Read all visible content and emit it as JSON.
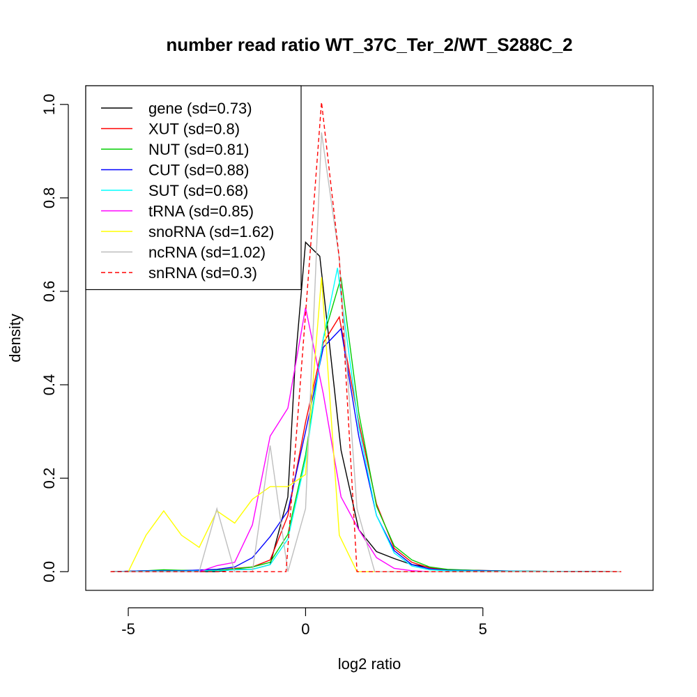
{
  "chart_data": {
    "type": "line",
    "title": "number read ratio WT_37C_Ter_2/WT_S288C_2",
    "xlabel": "log2 ratio",
    "ylabel": "density",
    "xlim": [
      -6.2,
      9.8
    ],
    "ylim": [
      -0.04,
      1.04
    ],
    "xticks": [
      -5,
      0,
      5
    ],
    "xtick_labels": [
      "-5",
      "0",
      "5"
    ],
    "yticks": [
      0.0,
      0.2,
      0.4,
      0.6,
      0.8,
      1.0
    ],
    "ytick_labels": [
      "0.0",
      "0.2",
      "0.4",
      "0.6",
      "0.8",
      "1.0"
    ],
    "grid": false,
    "legend_position": "top-left",
    "series": [
      {
        "name": "gene (sd=0.73)",
        "color": "#000000",
        "dash": "solid",
        "x": [
          -5.5,
          -4.5,
          -3.5,
          -3,
          -2.5,
          -2,
          -1.5,
          -1,
          -0.5,
          -0.3,
          0,
          0.4,
          0.8,
          1,
          1.5,
          2,
          2.5,
          3,
          4,
          6,
          8.9
        ],
        "y": [
          0,
          0,
          0,
          0,
          0,
          0.005,
          0.005,
          0.015,
          0.16,
          0.44,
          0.705,
          0.675,
          0.4,
          0.26,
          0.09,
          0.043,
          0.028,
          0.015,
          0.004,
          0.001,
          0
        ]
      },
      {
        "name": "XUT (sd=0.8)",
        "color": "#ff0000",
        "dash": "solid",
        "x": [
          -5.5,
          -4.5,
          -3.5,
          -2.5,
          -2,
          -1.5,
          -1,
          -0.5,
          0,
          0.5,
          0.95,
          1.5,
          2,
          2.5,
          3,
          3.5,
          4,
          5,
          6,
          8.9
        ],
        "y": [
          0,
          0.002,
          0.002,
          0.003,
          0.007,
          0.01,
          0.025,
          0.12,
          0.32,
          0.49,
          0.545,
          0.32,
          0.145,
          0.05,
          0.02,
          0.008,
          0.004,
          0.002,
          0.001,
          0
        ]
      },
      {
        "name": "NUT (sd=0.81)",
        "color": "#00cd00",
        "dash": "solid",
        "x": [
          -5.5,
          -4.5,
          -4,
          -3.5,
          -2.5,
          -2,
          -1.5,
          -1,
          -0.5,
          0,
          0.5,
          1,
          1.5,
          2,
          2.5,
          3,
          3.5,
          4,
          5,
          6,
          8.9
        ],
        "y": [
          0,
          0.002,
          0.004,
          0.003,
          0.003,
          0.006,
          0.01,
          0.02,
          0.08,
          0.25,
          0.5,
          0.63,
          0.34,
          0.14,
          0.055,
          0.025,
          0.01,
          0.005,
          0.002,
          0.001,
          0
        ]
      },
      {
        "name": "CUT (sd=0.88)",
        "color": "#0000ff",
        "dash": "solid",
        "x": [
          -5.5,
          -4.5,
          -3.5,
          -2.5,
          -2,
          -1.5,
          -1,
          -0.5,
          0,
          0.5,
          1,
          1.5,
          2,
          2.5,
          3,
          3.5,
          4,
          5,
          6,
          8.9
        ],
        "y": [
          0,
          0.002,
          0.002,
          0.005,
          0.01,
          0.03,
          0.075,
          0.13,
          0.3,
          0.48,
          0.52,
          0.29,
          0.12,
          0.045,
          0.015,
          0.006,
          0.003,
          0.002,
          0.001,
          0
        ]
      },
      {
        "name": "SUT (sd=0.68)",
        "color": "#00ffff",
        "dash": "solid",
        "x": [
          -5.5,
          -4.5,
          -3.5,
          -2.5,
          -2,
          -1.5,
          -1,
          -0.5,
          0,
          0.5,
          0.9,
          1.5,
          2,
          2.5,
          3,
          3.5,
          4,
          5,
          6,
          8.9
        ],
        "y": [
          0,
          0.001,
          0.001,
          0.002,
          0.004,
          0.005,
          0.015,
          0.07,
          0.24,
          0.5,
          0.65,
          0.31,
          0.12,
          0.04,
          0.012,
          0.004,
          0.002,
          0.001,
          0.001,
          0
        ]
      },
      {
        "name": "tRNA (sd=0.85)",
        "color": "#ff00ff",
        "dash": "solid",
        "x": [
          -5.5,
          -5,
          -4.5,
          -4,
          -3.5,
          -3,
          -2.5,
          -2,
          -1.5,
          -1,
          -0.5,
          0,
          0.5,
          1,
          1.5,
          2,
          2.5,
          3,
          3.5,
          4,
          5,
          6,
          8.9
        ],
        "y": [
          0,
          0,
          0,
          0,
          0,
          0,
          0.013,
          0.02,
          0.1,
          0.29,
          0.35,
          0.565,
          0.38,
          0.16,
          0.09,
          0.03,
          0.007,
          0.002,
          0,
          0,
          0,
          0,
          0
        ]
      },
      {
        "name": "snoRNA (sd=1.62)",
        "color": "#ffff00",
        "dash": "solid",
        "x": [
          -5.5,
          -5,
          -4.5,
          -4,
          -3.5,
          -3,
          -2.5,
          -2,
          -1.5,
          -1,
          -0.5,
          0,
          0.45,
          0.95,
          1.45,
          2,
          2.5,
          3,
          3.5,
          4,
          5,
          6,
          8.9
        ],
        "y": [
          0,
          0,
          0.078,
          0.13,
          0.078,
          0.052,
          0.13,
          0.104,
          0.155,
          0.182,
          0.182,
          0.208,
          0.63,
          0.078,
          0,
          0,
          0,
          0,
          0,
          0,
          0,
          0,
          0
        ]
      },
      {
        "name": "ncRNA (sd=1.02)",
        "color": "#bebebe",
        "dash": "solid",
        "x": [
          -5.5,
          -3.5,
          -3,
          -2.5,
          -2,
          -1.5,
          -1,
          -0.5,
          0,
          0.45,
          0.95,
          1.45,
          1.95,
          2.5,
          3,
          3.5,
          4,
          5,
          6,
          8.9
        ],
        "y": [
          0,
          0,
          0,
          0.135,
          0,
          0,
          0.27,
          0,
          0.135,
          0.94,
          0.67,
          0.135,
          0,
          0,
          0,
          0,
          0,
          0,
          0,
          0
        ]
      },
      {
        "name": "snRNA (sd=0.3)",
        "color": "#ff0000",
        "dash": "dashed",
        "x": [
          -5.5,
          -4.5,
          -3.5,
          -2.5,
          -1.5,
          -0.55,
          0.45,
          0.95,
          1.45,
          2,
          2.5,
          3,
          3.5,
          4,
          5,
          6,
          8.9
        ],
        "y": [
          0,
          0,
          0,
          0,
          0,
          0,
          1.005,
          0.67,
          0,
          0,
          0,
          0,
          0,
          0,
          0,
          0,
          0
        ]
      }
    ]
  }
}
